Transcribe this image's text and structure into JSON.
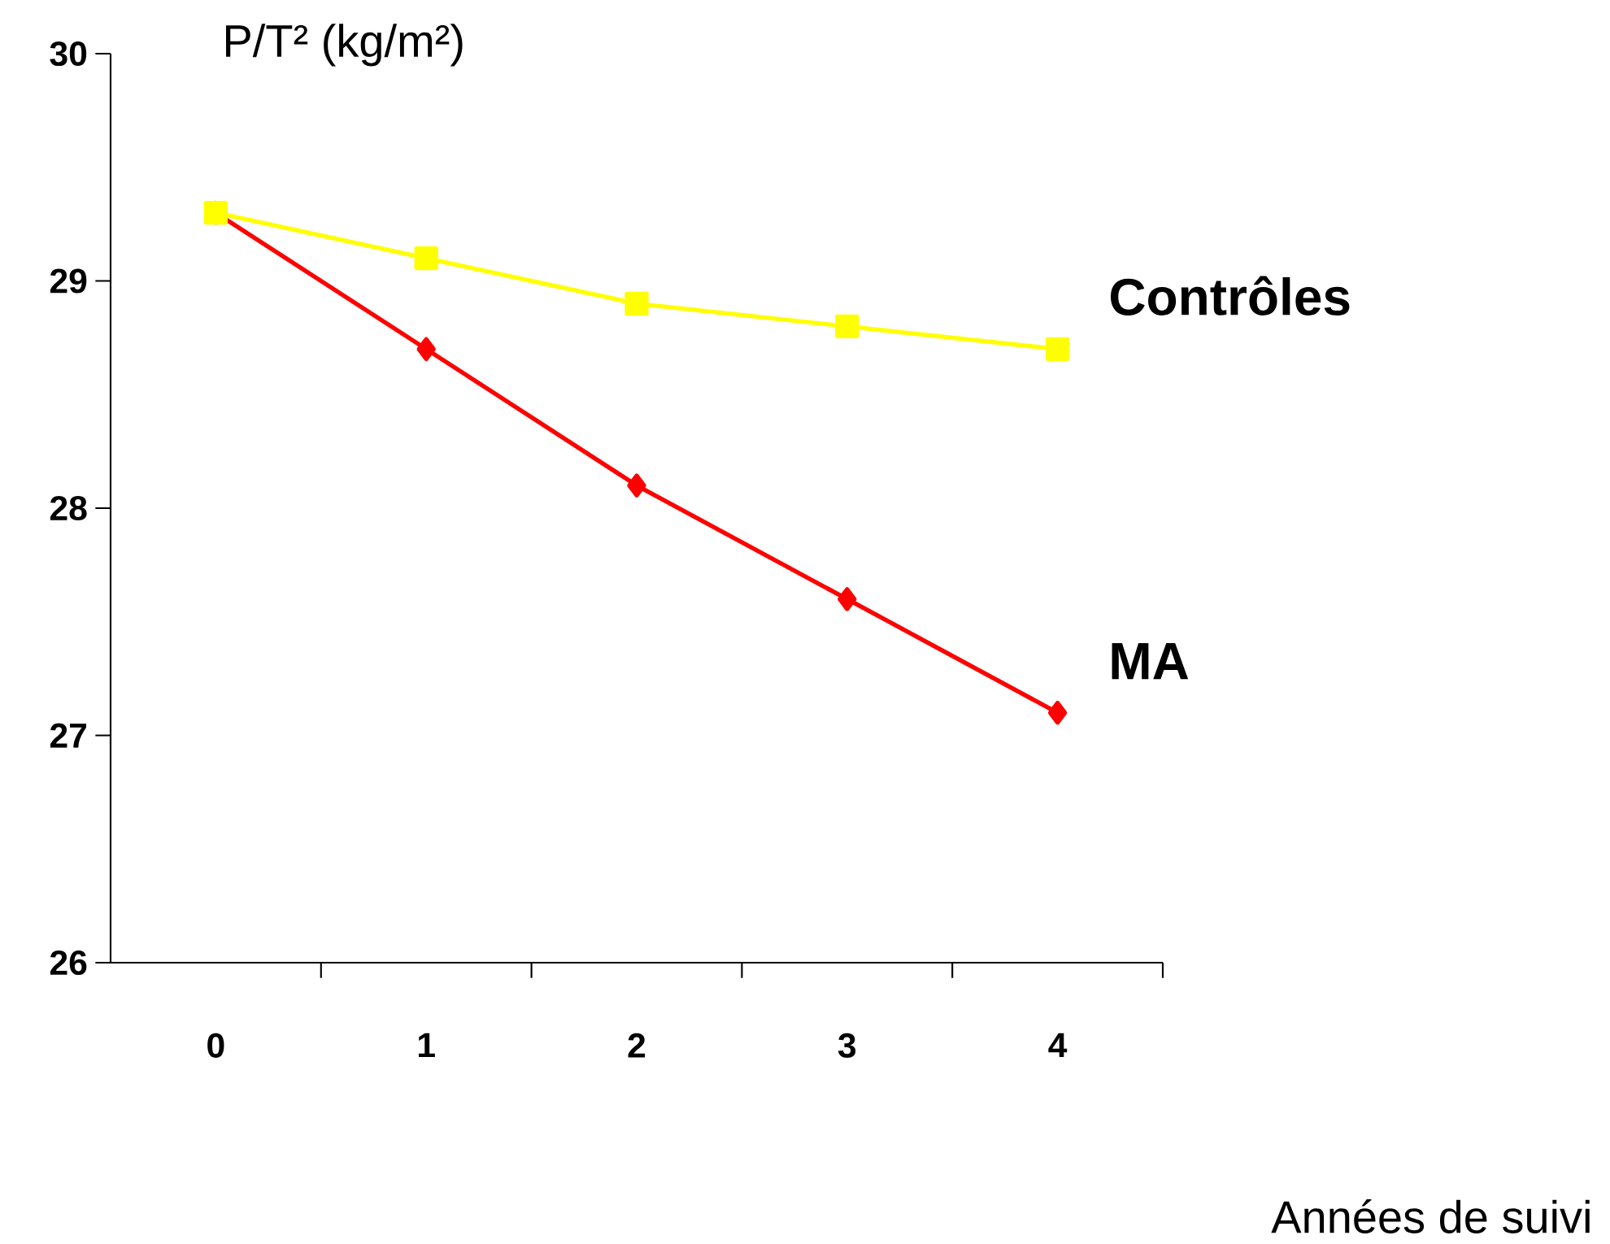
{
  "chart_data": {
    "type": "line",
    "ylabel": "P/T² (kg/m²)",
    "xlabel": "Années de suivi",
    "categories": [
      "0",
      "1",
      "2",
      "3",
      "4"
    ],
    "series": [
      {
        "name": "Contrôles",
        "color": "#ffff00",
        "marker": "square",
        "values": [
          29.3,
          29.1,
          28.9,
          28.8,
          28.7
        ]
      },
      {
        "name": "MA",
        "color": "#ff0000",
        "marker": "diamond",
        "values": [
          29.3,
          28.7,
          28.1,
          27.6,
          27.1
        ]
      }
    ],
    "ylim": [
      26,
      30
    ],
    "yticks": [
      26,
      27,
      28,
      29,
      30
    ],
    "grid": false,
    "line_style": "solid"
  }
}
